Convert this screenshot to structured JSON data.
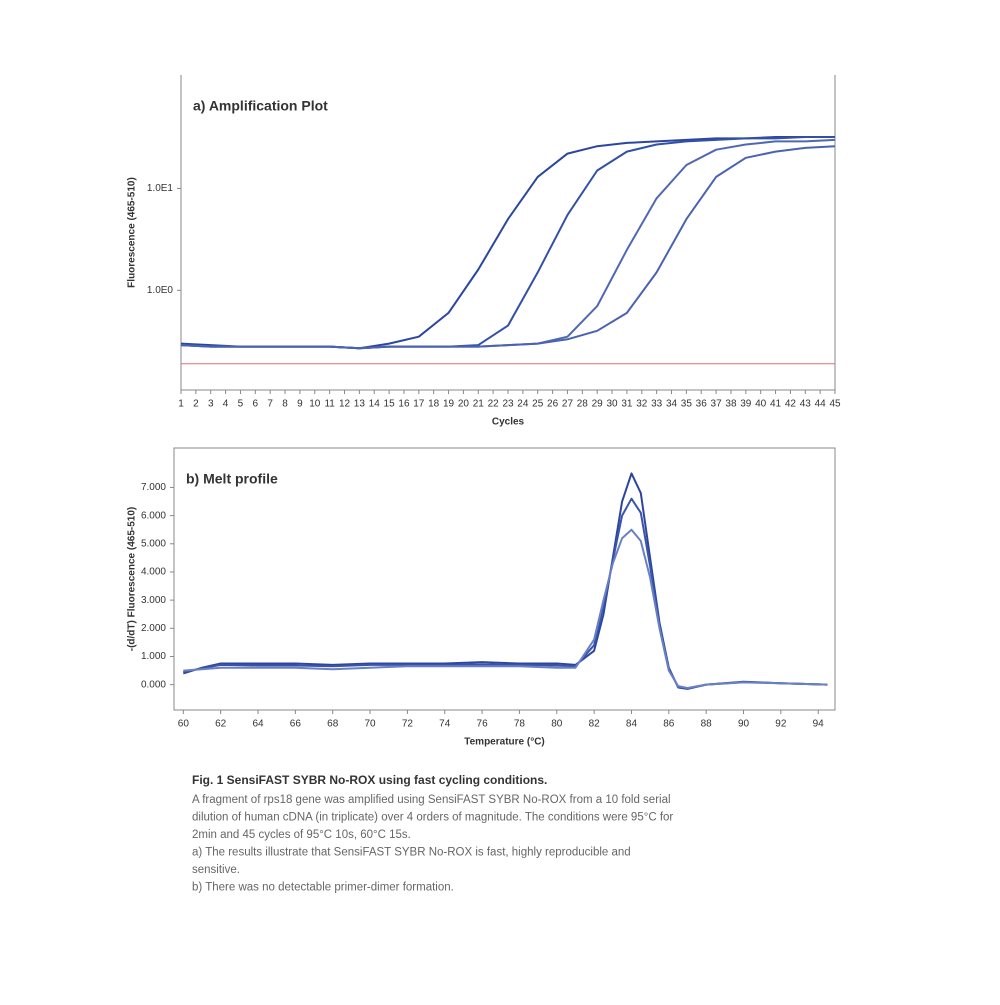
{
  "chart_data": [
    {
      "type": "line",
      "title": "a) Amplification Plot",
      "x_label": "Cycles",
      "y_label": "Fluorescence (465-510)",
      "log_y": true,
      "xlim": [
        1,
        45
      ],
      "ylim": [
        0.105,
        130
      ],
      "xticks": [
        1,
        2,
        3,
        4,
        5,
        6,
        7,
        8,
        9,
        10,
        11,
        12,
        13,
        14,
        15,
        16,
        17,
        18,
        19,
        20,
        21,
        22,
        23,
        24,
        25,
        26,
        27,
        28,
        29,
        30,
        31,
        32,
        33,
        34,
        35,
        36,
        37,
        38,
        39,
        40,
        41,
        42,
        43,
        44,
        45
      ],
      "yticks": [
        {
          "value": 10,
          "label": "1.0E1"
        },
        {
          "value": 1,
          "label": "1.0E0"
        }
      ],
      "threshold": 0.19,
      "threshold_color": "#e07070",
      "x": [
        1,
        3,
        5,
        7,
        9,
        11,
        13,
        15,
        17,
        19,
        21,
        23,
        25,
        27,
        29,
        31,
        33,
        35,
        37,
        39,
        41,
        43,
        45
      ],
      "series": [
        {
          "color": "#2c46a0",
          "values": [
            0.3,
            0.29,
            0.28,
            0.28,
            0.28,
            0.28,
            0.27,
            0.3,
            0.35,
            0.6,
            1.6,
            5,
            13,
            22,
            26,
            28,
            29,
            30,
            31,
            31,
            32,
            32,
            32
          ]
        },
        {
          "color": "#3350a8",
          "values": [
            0.29,
            0.28,
            0.28,
            0.28,
            0.28,
            0.28,
            0.27,
            0.28,
            0.28,
            0.28,
            0.29,
            0.45,
            1.5,
            5.5,
            15,
            23,
            27,
            29,
            30,
            31,
            31,
            32,
            32
          ]
        },
        {
          "color": "#5068b4",
          "values": [
            0.29,
            0.28,
            0.28,
            0.28,
            0.28,
            0.28,
            0.27,
            0.28,
            0.28,
            0.28,
            0.28,
            0.29,
            0.3,
            0.35,
            0.7,
            2.5,
            8,
            17,
            24,
            27,
            29,
            29,
            30
          ]
        },
        {
          "color": "#4a62b2",
          "values": [
            0.29,
            0.28,
            0.28,
            0.28,
            0.28,
            0.28,
            0.27,
            0.28,
            0.28,
            0.28,
            0.28,
            0.29,
            0.3,
            0.33,
            0.4,
            0.6,
            1.5,
            5,
            13,
            20,
            23,
            25,
            26
          ]
        }
      ]
    },
    {
      "type": "line",
      "title": "b) Melt profile",
      "x_label": "Temperature (°C)",
      "y_label": "-(d/dT) Fluorescence (465-510)",
      "log_y": false,
      "xlim": [
        59.5,
        94.9
      ],
      "ylim": [
        -0.9,
        8.4
      ],
      "xticks": [
        60,
        62,
        64,
        66,
        68,
        70,
        72,
        74,
        76,
        78,
        80,
        82,
        84,
        86,
        88,
        90,
        92,
        94
      ],
      "yticks": [
        {
          "value": 0,
          "label": "0.000"
        },
        {
          "value": 1,
          "label": "1.000"
        },
        {
          "value": 2,
          "label": "2.000"
        },
        {
          "value": 3,
          "label": "3.000"
        },
        {
          "value": 4,
          "label": "4.000"
        },
        {
          "value": 5,
          "label": "5.000"
        },
        {
          "value": 6,
          "label": "6.000"
        },
        {
          "value": 7,
          "label": "7.000"
        }
      ],
      "x": [
        60,
        61,
        62,
        64,
        66,
        68,
        70,
        72,
        74,
        76,
        78,
        80,
        81,
        82,
        82.5,
        83,
        83.5,
        84,
        84.5,
        85,
        85.5,
        86,
        86.5,
        87,
        88,
        90,
        92,
        94.5
      ],
      "series": [
        {
          "color": "#2c46a0",
          "values": [
            0.4,
            0.6,
            0.75,
            0.75,
            0.75,
            0.7,
            0.75,
            0.75,
            0.75,
            0.8,
            0.75,
            0.75,
            0.7,
            1.2,
            2.5,
            4.5,
            6.5,
            7.5,
            6.8,
            4.5,
            2.2,
            0.6,
            -0.1,
            -0.15,
            0,
            0.1,
            0.05,
            0
          ]
        },
        {
          "color": "#3a54aa",
          "values": [
            0.45,
            0.58,
            0.7,
            0.68,
            0.68,
            0.65,
            0.7,
            0.7,
            0.7,
            0.72,
            0.7,
            0.68,
            0.65,
            1.4,
            2.8,
            4.4,
            6,
            6.6,
            6.1,
            4.2,
            2.1,
            0.55,
            -0.08,
            -0.13,
            0,
            0.09,
            0.05,
            0
          ]
        },
        {
          "color": "#6a80c4",
          "values": [
            0.5,
            0.55,
            0.6,
            0.6,
            0.6,
            0.55,
            0.6,
            0.65,
            0.65,
            0.65,
            0.65,
            0.6,
            0.6,
            1.6,
            3,
            4.3,
            5.2,
            5.5,
            5.1,
            3.8,
            2,
            0.5,
            -0.05,
            -0.12,
            0,
            0.08,
            0.05,
            0
          ]
        }
      ]
    }
  ],
  "caption": {
    "title": "Fig. 1 SensiFAST SYBR No-ROX using fast cycling conditions.",
    "lines": [
      "A fragment of rps18 gene was amplified using SensiFAST SYBR No-ROX from a 10 fold serial",
      "dilution of human cDNA (in triplicate) over 4 orders of magnitude. The conditions were 95°C for",
      "2min and 45 cycles of 95°C 10s, 60°C 15s.",
      "a) The results illustrate that SensiFAST SYBR No-ROX is fast, highly reproducible and",
      "sensitive.",
      "b) There was no detectable primer-dimer formation."
    ]
  }
}
